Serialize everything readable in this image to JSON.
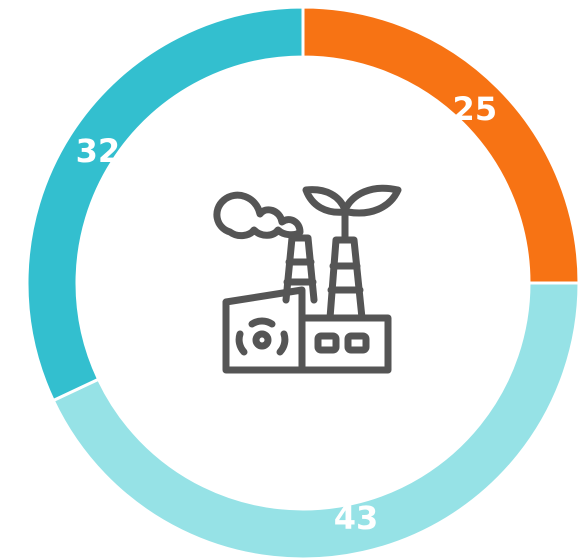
{
  "chart_data": {
    "type": "donut",
    "values": [
      25,
      43,
      32
    ],
    "colors": [
      "#f77314",
      "#96e2e6",
      "#33bfcf"
    ]
  }
}
